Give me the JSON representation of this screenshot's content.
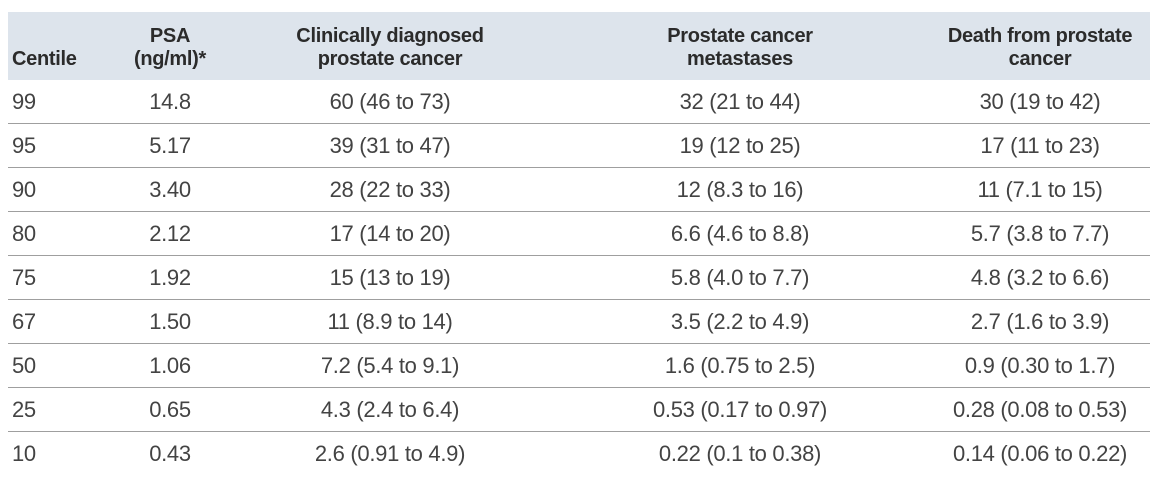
{
  "colors": {
    "header_background": "#dde4ec",
    "row_divider": "#9f9f9f",
    "header_text": "#2b2b2b",
    "body_text": "#434343",
    "page_background": "#ffffff"
  },
  "table": {
    "columns": {
      "centile": "Centile",
      "psa": "PSA\n(ng/ml)*",
      "clinical": "Clinically diagnosed\nprostate cancer",
      "metastases": "Prostate cancer\nmetastases",
      "death": "Death from prostate\ncancer"
    },
    "rows": [
      {
        "centile": "99",
        "psa": "14.8",
        "clinical": "60 (46 to 73)",
        "metastases": "32 (21 to 44)",
        "death": "30 (19 to 42)"
      },
      {
        "centile": "95",
        "psa": "5.17",
        "clinical": "39 (31 to 47)",
        "metastases": "19 (12 to 25)",
        "death": "17 (11 to 23)"
      },
      {
        "centile": "90",
        "psa": "3.40",
        "clinical": "28 (22 to 33)",
        "metastases": "12 (8.3 to 16)",
        "death": "11 (7.1 to 15)"
      },
      {
        "centile": "80",
        "psa": "2.12",
        "clinical": "17 (14 to 20)",
        "metastases": "6.6 (4.6 to 8.8)",
        "death": "5.7 (3.8 to 7.7)"
      },
      {
        "centile": "75",
        "psa": "1.92",
        "clinical": "15 (13 to 19)",
        "metastases": "5.8 (4.0 to 7.7)",
        "death": "4.8 (3.2 to 6.6)"
      },
      {
        "centile": "67",
        "psa": "1.50",
        "clinical": "11 (8.9 to 14)",
        "metastases": "3.5 (2.2 to 4.9)",
        "death": "2.7 (1.6 to 3.9)"
      },
      {
        "centile": "50",
        "psa": "1.06",
        "clinical": "7.2 (5.4 to 9.1)",
        "metastases": "1.6 (0.75 to 2.5)",
        "death": "0.9 (0.30 to 1.7)"
      },
      {
        "centile": "25",
        "psa": "0.65",
        "clinical": "4.3 (2.4 to 6.4)",
        "metastases": "0.53 (0.17 to 0.97)",
        "death": "0.28 (0.08 to 0.53)"
      },
      {
        "centile": "10",
        "psa": "0.43",
        "clinical": "2.6 (0.91 to 4.9)",
        "metastases": "0.22 (0.1 to 0.38)",
        "death": "0.14 (0.06 to 0.22)"
      }
    ]
  },
  "chart_data": {
    "type": "table",
    "title": "",
    "columns": [
      "Centile",
      "PSA (ng/ml)*",
      "Clinically diagnosed prostate cancer",
      "Prostate cancer metastases",
      "Death from prostate cancer"
    ],
    "rows": [
      [
        "99",
        "14.8",
        "60 (46 to 73)",
        "32 (21 to 44)",
        "30 (19 to 42)"
      ],
      [
        "95",
        "5.17",
        "39 (31 to 47)",
        "19 (12 to 25)",
        "17 (11 to 23)"
      ],
      [
        "90",
        "3.40",
        "28 (22 to 33)",
        "12 (8.3 to 16)",
        "11 (7.1 to 15)"
      ],
      [
        "80",
        "2.12",
        "17 (14 to 20)",
        "6.6 (4.6 to 8.8)",
        "5.7 (3.8 to 7.7)"
      ],
      [
        "75",
        "1.92",
        "15 (13 to 19)",
        "5.8 (4.0 to 7.7)",
        "4.8 (3.2 to 6.6)"
      ],
      [
        "67",
        "1.50",
        "11 (8.9 to 14)",
        "3.5 (2.2 to 4.9)",
        "2.7 (1.6 to 3.9)"
      ],
      [
        "50",
        "1.06",
        "7.2 (5.4 to 9.1)",
        "1.6 (0.75 to 2.5)",
        "0.9 (0.30 to 1.7)"
      ],
      [
        "25",
        "0.65",
        "4.3 (2.4 to 6.4)",
        "0.53 (0.17 to 0.97)",
        "0.28 (0.08 to 0.53)"
      ],
      [
        "10",
        "0.43",
        "2.6 (0.91 to 4.9)",
        "0.22 (0.1 to 0.38)",
        "0.14 (0.06 to 0.22)"
      ]
    ]
  }
}
